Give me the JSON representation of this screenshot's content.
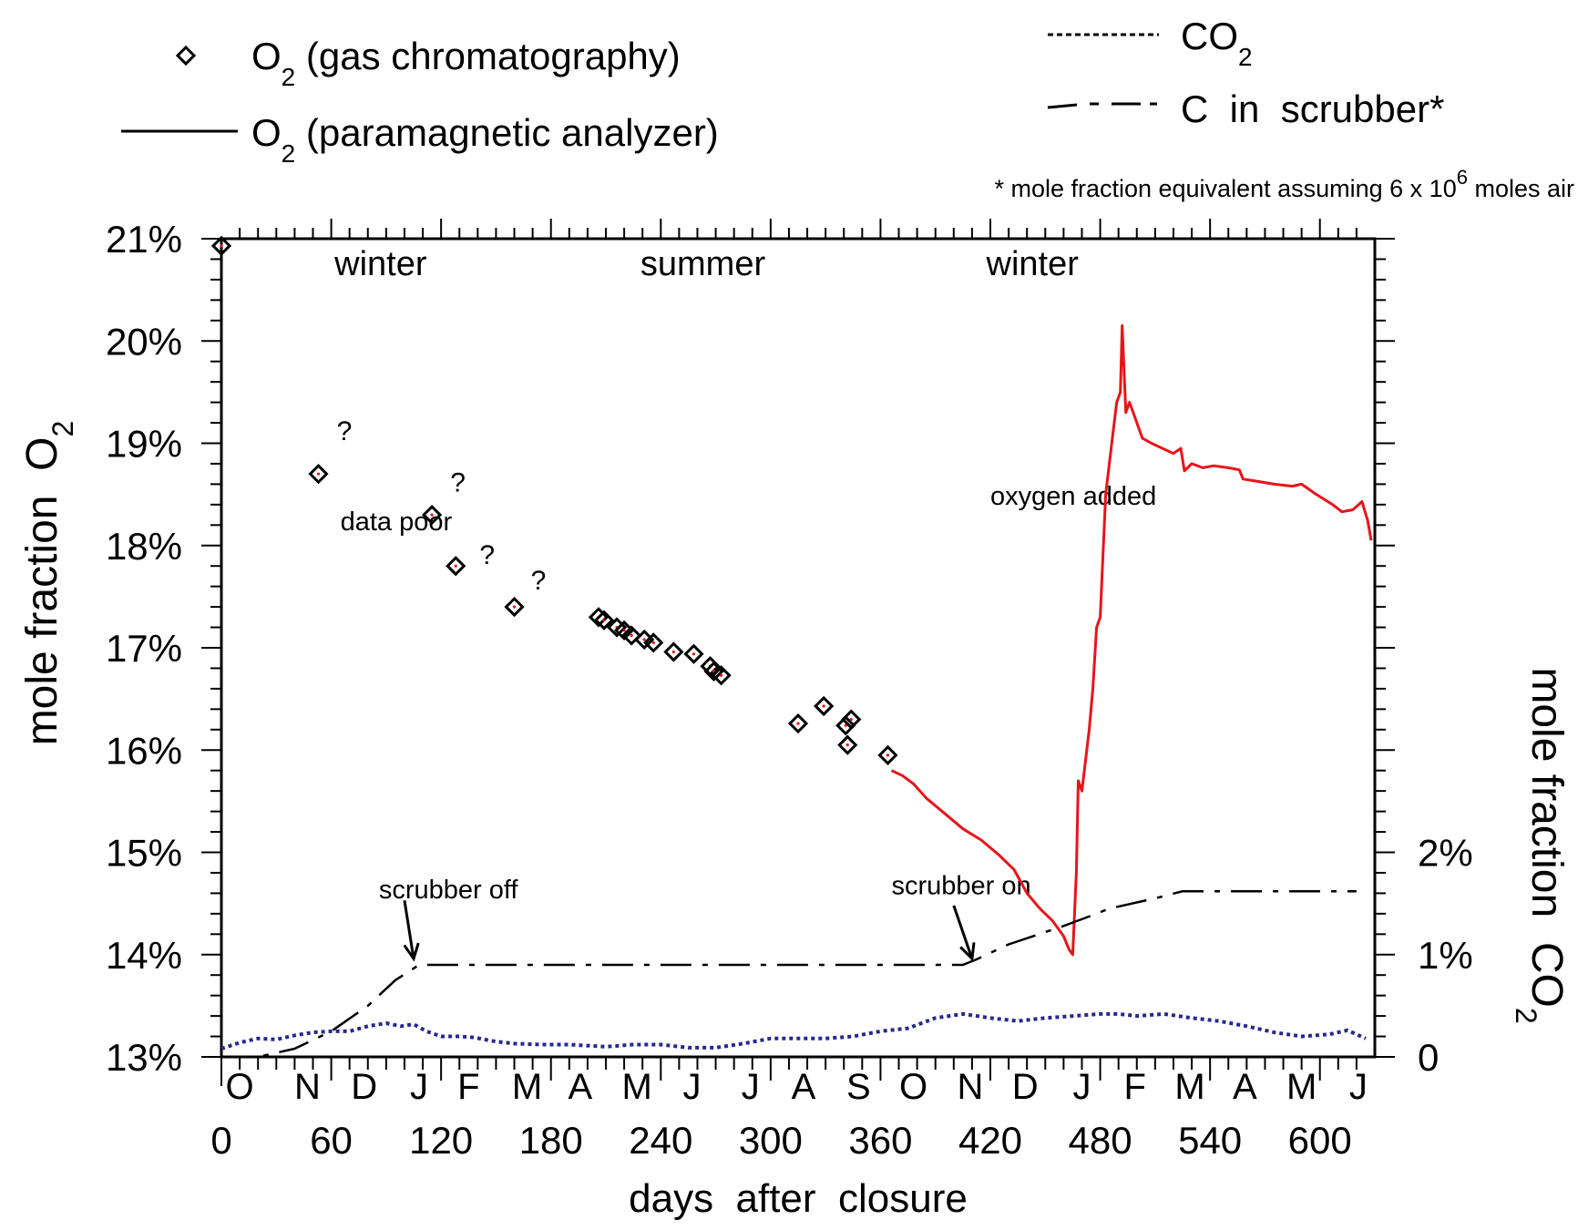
{
  "chart_data": {
    "type": "line",
    "legend": [
      {
        "marker": "diamond",
        "label": "O",
        "sub": "2",
        "rest": " (gas chromatography)"
      },
      {
        "marker": "solid",
        "label": "O",
        "sub": "2",
        "rest": " (paramagnetic analyzer)"
      },
      {
        "marker": "dotted",
        "label": "CO",
        "sub": "2",
        "rest": ""
      },
      {
        "marker": "dashdot",
        "label": "C  in  scrubber*",
        "sub": "",
        "rest": ""
      }
    ],
    "footnote": "* mole fraction equivalent assuming 6 x 10",
    "footnote_sup": "6",
    "footnote_end": " moles air",
    "xlabel": "days  after  closure",
    "ylabel_left": "mole fraction  O",
    "ylabel_left_sub": "2",
    "ylabel_right": "mole fraction  CO",
    "ylabel_right_sub": "2",
    "xlim": [
      0,
      630
    ],
    "ylim_left": [
      13,
      21
    ],
    "ylim_right": [
      0,
      8
    ],
    "x_ticks": [
      0,
      60,
      120,
      180,
      240,
      300,
      360,
      420,
      480,
      540,
      600
    ],
    "x_tick_labels": [
      "0",
      "60",
      "120",
      "180",
      "240",
      "300",
      "360",
      "420",
      "480",
      "540",
      "600"
    ],
    "month_labels": [
      {
        "day": 10,
        "label": "O"
      },
      {
        "day": 47,
        "label": "N"
      },
      {
        "day": 78,
        "label": "D"
      },
      {
        "day": 108,
        "label": "J"
      },
      {
        "day": 135,
        "label": "F"
      },
      {
        "day": 167,
        "label": "M"
      },
      {
        "day": 196,
        "label": "A"
      },
      {
        "day": 227,
        "label": "M"
      },
      {
        "day": 257,
        "label": "J"
      },
      {
        "day": 289,
        "label": "J"
      },
      {
        "day": 318,
        "label": "A"
      },
      {
        "day": 348,
        "label": "S"
      },
      {
        "day": 378,
        "label": "O"
      },
      {
        "day": 409,
        "label": "N"
      },
      {
        "day": 439,
        "label": "D"
      },
      {
        "day": 470,
        "label": "J"
      },
      {
        "day": 499,
        "label": "F"
      },
      {
        "day": 529,
        "label": "M"
      },
      {
        "day": 559,
        "label": "A"
      },
      {
        "day": 590,
        "label": "M"
      },
      {
        "day": 621,
        "label": "J"
      }
    ],
    "y_ticks_left": [
      13,
      14,
      15,
      16,
      17,
      18,
      19,
      20,
      21
    ],
    "y_tick_labels_left": [
      "13%",
      "14%",
      "15%",
      "16%",
      "17%",
      "18%",
      "19%",
      "20%",
      "21%"
    ],
    "y_ticks_right": [
      0,
      1,
      2
    ],
    "y_tick_labels_right": [
      "0",
      "1%",
      "2%"
    ],
    "seasons": [
      {
        "day": 87,
        "label": "winter"
      },
      {
        "day": 263,
        "label": "summer"
      },
      {
        "day": 443,
        "label": "winter"
      }
    ],
    "annotations": [
      {
        "text": "data poor",
        "day": 65,
        "value": 18.15
      },
      {
        "text": "oxygen added",
        "day": 420,
        "value": 18.4
      },
      {
        "text": "scrubber off",
        "day": 86,
        "value": 14.55
      },
      {
        "text": "scrubber on",
        "day": 366,
        "value": 14.59
      }
    ],
    "question_marks": [
      {
        "day": 63,
        "value": 19.03
      },
      {
        "day": 125,
        "value": 18.53
      },
      {
        "day": 141,
        "value": 17.82
      },
      {
        "day": 169,
        "value": 17.57
      }
    ],
    "arrows": [
      {
        "from": [
          100,
          14.53
        ],
        "to": [
          105,
          13.96
        ]
      },
      {
        "from": [
          400,
          14.48
        ],
        "to": [
          410,
          13.96
        ]
      }
    ],
    "series": [
      {
        "name": "O2 (gas chromatography)",
        "axis": "left",
        "style": "diamond",
        "color": "#000000",
        "points": [
          [
            0,
            20.93
          ],
          [
            53,
            18.7
          ],
          [
            115,
            18.3
          ],
          [
            128,
            17.8
          ],
          [
            160,
            17.4
          ],
          [
            206,
            17.3
          ],
          [
            209,
            17.27
          ],
          [
            216,
            17.2
          ],
          [
            220,
            17.17
          ],
          [
            224,
            17.12
          ],
          [
            231,
            17.08
          ],
          [
            236,
            17.05
          ],
          [
            247,
            16.96
          ],
          [
            258,
            16.94
          ],
          [
            267,
            16.82
          ],
          [
            269,
            16.77
          ],
          [
            273,
            16.73
          ],
          [
            315,
            16.26
          ],
          [
            329,
            16.43
          ],
          [
            341,
            16.24
          ],
          [
            342,
            16.05
          ],
          [
            344,
            16.3
          ],
          [
            364,
            15.95
          ]
        ]
      },
      {
        "name": "O2 (paramagnetic analyzer)",
        "axis": "left",
        "style": "solid",
        "color": "#e8141a",
        "points": [
          [
            366,
            15.8
          ],
          [
            372,
            15.75
          ],
          [
            378,
            15.67
          ],
          [
            385,
            15.53
          ],
          [
            395,
            15.38
          ],
          [
            405,
            15.23
          ],
          [
            415,
            15.12
          ],
          [
            425,
            14.97
          ],
          [
            433,
            14.83
          ],
          [
            440,
            14.6
          ],
          [
            447,
            14.45
          ],
          [
            454,
            14.33
          ],
          [
            460,
            14.18
          ],
          [
            463,
            14.05
          ],
          [
            465,
            14.0
          ],
          [
            467,
            14.8
          ],
          [
            468,
            15.7
          ],
          [
            470,
            15.6
          ],
          [
            472,
            15.9
          ],
          [
            474,
            16.2
          ],
          [
            476,
            16.6
          ],
          [
            478,
            17.2
          ],
          [
            480,
            17.3
          ],
          [
            483,
            18.5
          ],
          [
            485,
            18.8
          ],
          [
            487,
            19.1
          ],
          [
            489,
            19.4
          ],
          [
            491,
            19.5
          ],
          [
            492,
            20.15
          ],
          [
            494,
            19.3
          ],
          [
            496,
            19.4
          ],
          [
            499,
            19.25
          ],
          [
            503,
            19.05
          ],
          [
            508,
            19.0
          ],
          [
            514,
            18.95
          ],
          [
            520,
            18.9
          ],
          [
            524,
            18.95
          ],
          [
            526,
            18.73
          ],
          [
            530,
            18.8
          ],
          [
            536,
            18.76
          ],
          [
            542,
            18.78
          ],
          [
            550,
            18.76
          ],
          [
            556,
            18.74
          ],
          [
            558,
            18.65
          ],
          [
            565,
            18.63
          ],
          [
            575,
            18.6
          ],
          [
            585,
            18.58
          ],
          [
            590,
            18.6
          ],
          [
            598,
            18.5
          ],
          [
            607,
            18.4
          ],
          [
            612,
            18.33
          ],
          [
            618,
            18.35
          ],
          [
            623,
            18.43
          ],
          [
            626,
            18.25
          ],
          [
            628,
            18.05
          ]
        ]
      },
      {
        "name": "CO2",
        "axis": "right",
        "style": "dotted",
        "color": "#28288c",
        "points": [
          [
            0,
            0.08
          ],
          [
            10,
            0.14
          ],
          [
            20,
            0.18
          ],
          [
            30,
            0.17
          ],
          [
            40,
            0.21
          ],
          [
            50,
            0.24
          ],
          [
            60,
            0.25
          ],
          [
            70,
            0.25
          ],
          [
            80,
            0.3
          ],
          [
            90,
            0.33
          ],
          [
            98,
            0.3
          ],
          [
            105,
            0.32
          ],
          [
            112,
            0.25
          ],
          [
            120,
            0.2
          ],
          [
            130,
            0.2
          ],
          [
            138,
            0.19
          ],
          [
            150,
            0.15
          ],
          [
            160,
            0.13
          ],
          [
            175,
            0.12
          ],
          [
            190,
            0.12
          ],
          [
            210,
            0.1
          ],
          [
            225,
            0.12
          ],
          [
            240,
            0.12
          ],
          [
            255,
            0.09
          ],
          [
            270,
            0.09
          ],
          [
            285,
            0.13
          ],
          [
            300,
            0.18
          ],
          [
            315,
            0.18
          ],
          [
            330,
            0.18
          ],
          [
            345,
            0.2
          ],
          [
            360,
            0.25
          ],
          [
            375,
            0.28
          ],
          [
            390,
            0.38
          ],
          [
            405,
            0.42
          ],
          [
            420,
            0.38
          ],
          [
            435,
            0.35
          ],
          [
            450,
            0.38
          ],
          [
            465,
            0.4
          ],
          [
            480,
            0.42
          ],
          [
            490,
            0.42
          ],
          [
            500,
            0.4
          ],
          [
            515,
            0.42
          ],
          [
            530,
            0.38
          ],
          [
            545,
            0.35
          ],
          [
            560,
            0.3
          ],
          [
            575,
            0.24
          ],
          [
            590,
            0.2
          ],
          [
            605,
            0.22
          ],
          [
            615,
            0.26
          ],
          [
            625,
            0.18
          ]
        ]
      },
      {
        "name": "C in scrubber*",
        "axis": "right",
        "style": "dashdot",
        "color": "#000000",
        "points": [
          [
            0,
            0.0
          ],
          [
            20,
            0.0
          ],
          [
            40,
            0.08
          ],
          [
            60,
            0.25
          ],
          [
            80,
            0.5
          ],
          [
            95,
            0.75
          ],
          [
            108,
            0.9
          ],
          [
            115,
            0.9
          ],
          [
            200,
            0.9
          ],
          [
            300,
            0.9
          ],
          [
            405,
            0.9
          ],
          [
            412,
            0.95
          ],
          [
            430,
            1.1
          ],
          [
            460,
            1.28
          ],
          [
            475,
            1.38
          ],
          [
            485,
            1.45
          ],
          [
            510,
            1.55
          ],
          [
            525,
            1.62
          ],
          [
            570,
            1.62
          ],
          [
            620,
            1.62
          ]
        ]
      }
    ]
  }
}
